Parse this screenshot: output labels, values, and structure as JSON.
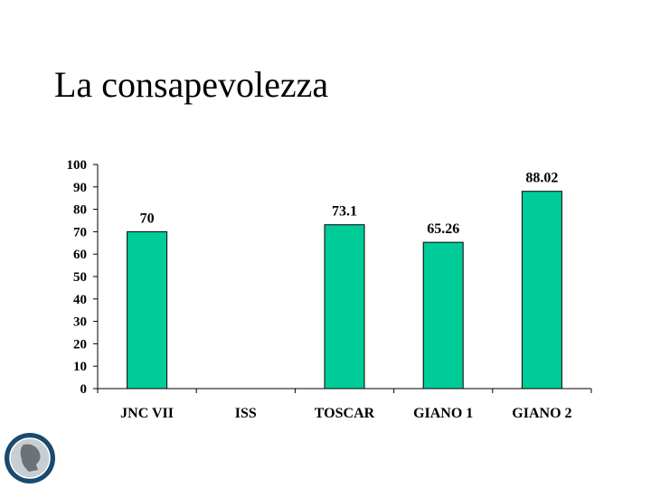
{
  "slide": {
    "title": "La consapevolezza"
  },
  "colors": {
    "bar": "#00cc99",
    "bar_stroke": "#000000",
    "axis": "#000000",
    "logo_ring": "#1a4a6e",
    "logo_face": "#c9ced3"
  },
  "logo": {
    "icon": "coin-profile-logo-icon"
  },
  "chart_data": {
    "type": "bar",
    "categories": [
      "JNC VII",
      "ISS",
      "TOSCAR",
      "GIANO 1",
      "GIANO 2"
    ],
    "values": [
      70,
      null,
      73.1,
      65.26,
      88.02
    ],
    "value_labels": [
      "70",
      "",
      "73.1",
      "65.26",
      "88.02"
    ],
    "ylim": [
      0,
      100
    ],
    "yticks": [
      "0",
      "10",
      "20",
      "30",
      "40",
      "50",
      "60",
      "70",
      "80",
      "90",
      "100"
    ],
    "grid": false,
    "legend": "none"
  }
}
